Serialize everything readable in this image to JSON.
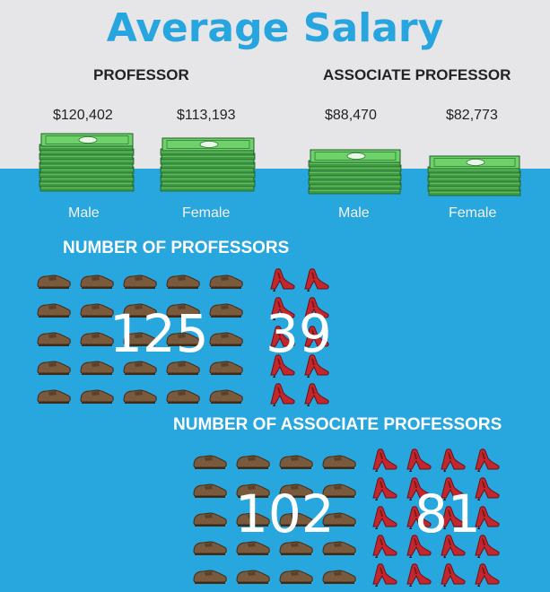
{
  "title": "Average Salary",
  "salary": {
    "professor": {
      "label": "PROFESSOR",
      "male": "$120,402",
      "female": "$113,193"
    },
    "associate": {
      "label": "ASSOCIATE PROFESSOR",
      "male": "$88,470",
      "female": "$82,773"
    },
    "male_label": "Male",
    "female_label": "Female"
  },
  "professors": {
    "label": "NUMBER OF PROFESSORS",
    "male_count": "125",
    "female_count": "39"
  },
  "associates": {
    "label": "NUMBER OF ASSOCIATE PROFESSORS",
    "male_count": "102",
    "female_count": "81"
  },
  "colors": {
    "blue": "#28a6de",
    "band": "#e6e6e8",
    "money": "#6fd16a",
    "shoe_brown": "#7a5a3c",
    "heel_red": "#c1272d"
  },
  "icons": {
    "cash": "cash-stack-icon",
    "male": "brown-shoe-icon",
    "female": "red-heel-icon"
  }
}
